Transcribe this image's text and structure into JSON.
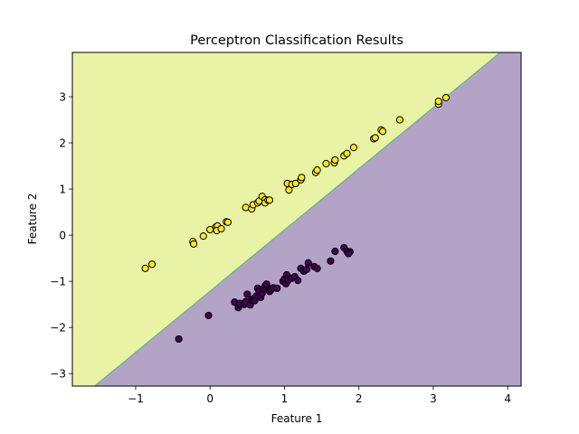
{
  "chart_data": {
    "type": "scatter",
    "title": "Perceptron Classification Results",
    "xlabel": "Feature 1",
    "ylabel": "Feature 2",
    "xlim": [
      -1.85,
      4.18
    ],
    "ylim": [
      -3.27,
      3.96
    ],
    "xticks": [
      -1,
      0,
      1,
      2,
      3,
      4
    ],
    "yticks": [
      -3,
      -2,
      -1,
      0,
      1,
      2,
      3
    ],
    "xtick_labels": [
      "−1",
      "0",
      "1",
      "2",
      "3",
      "4"
    ],
    "ytick_labels": [
      "−3",
      "−2",
      "−1",
      "0",
      "1",
      "2",
      "3"
    ],
    "grid": false,
    "decision_boundary": {
      "points": [
        [
          -1.55,
          -3.27
        ],
        [
          3.9,
          3.96
        ]
      ],
      "region_above_color": "#e9f3a6",
      "region_below_color": "#b3a3c7",
      "boundary_color": "#69b66d"
    },
    "series": [
      {
        "class": 1,
        "color": "#fde725",
        "edgecolor": "#000000",
        "points": [
          [
            -0.87,
            -0.72
          ],
          [
            -0.78,
            -0.63
          ],
          [
            -0.23,
            -0.14
          ],
          [
            -0.22,
            -0.19
          ],
          [
            -0.09,
            -0.02
          ],
          [
            0.0,
            0.12
          ],
          [
            0.08,
            0.18
          ],
          [
            0.1,
            0.2
          ],
          [
            0.09,
            0.1
          ],
          [
            0.15,
            0.14
          ],
          [
            0.22,
            0.29
          ],
          [
            0.24,
            0.28
          ],
          [
            0.48,
            0.6
          ],
          [
            0.56,
            0.57
          ],
          [
            0.58,
            0.66
          ],
          [
            0.64,
            0.7
          ],
          [
            0.66,
            0.74
          ],
          [
            0.7,
            0.84
          ],
          [
            0.74,
            0.77
          ],
          [
            0.74,
            0.7
          ],
          [
            0.78,
            0.76
          ],
          [
            0.8,
            0.76
          ],
          [
            1.04,
            1.12
          ],
          [
            1.06,
            0.98
          ],
          [
            1.1,
            1.1
          ],
          [
            1.15,
            1.12
          ],
          [
            1.22,
            1.2
          ],
          [
            1.23,
            1.25
          ],
          [
            1.42,
            1.36
          ],
          [
            1.44,
            1.41
          ],
          [
            1.56,
            1.55
          ],
          [
            1.67,
            1.57
          ],
          [
            1.68,
            1.63
          ],
          [
            1.8,
            1.72
          ],
          [
            1.84,
            1.77
          ],
          [
            1.93,
            1.9
          ],
          [
            2.2,
            2.09
          ],
          [
            2.22,
            2.11
          ],
          [
            2.3,
            2.28
          ],
          [
            2.32,
            2.25
          ],
          [
            2.55,
            2.5
          ],
          [
            3.07,
            2.84
          ],
          [
            3.07,
            2.9
          ],
          [
            3.17,
            2.98
          ]
        ]
      },
      {
        "class": 0,
        "color": "#440154",
        "edgecolor": "#000000",
        "points": [
          [
            -0.42,
            -2.25
          ],
          [
            -0.02,
            -1.74
          ],
          [
            0.33,
            -1.45
          ],
          [
            0.38,
            -1.57
          ],
          [
            0.4,
            -1.48
          ],
          [
            0.46,
            -1.5
          ],
          [
            0.48,
            -1.44
          ],
          [
            0.5,
            -1.28
          ],
          [
            0.54,
            -1.51
          ],
          [
            0.56,
            -1.4
          ],
          [
            0.58,
            -1.38
          ],
          [
            0.6,
            -1.42
          ],
          [
            0.62,
            -1.32
          ],
          [
            0.64,
            -1.15
          ],
          [
            0.66,
            -1.22
          ],
          [
            0.68,
            -1.35
          ],
          [
            0.7,
            -1.26
          ],
          [
            0.72,
            -1.16
          ],
          [
            0.74,
            -1.1
          ],
          [
            0.76,
            -1.06
          ],
          [
            0.8,
            -1.22
          ],
          [
            0.82,
            -1.18
          ],
          [
            0.85,
            -1.14
          ],
          [
            0.9,
            -1.15
          ],
          [
            0.98,
            -1.0
          ],
          [
            1.0,
            -0.95
          ],
          [
            1.02,
            -1.05
          ],
          [
            1.03,
            -0.86
          ],
          [
            1.05,
            -0.98
          ],
          [
            1.1,
            -0.93
          ],
          [
            1.14,
            -0.9
          ],
          [
            1.18,
            -0.98
          ],
          [
            1.22,
            -0.72
          ],
          [
            1.26,
            -0.78
          ],
          [
            1.3,
            -0.74
          ],
          [
            1.32,
            -0.6
          ],
          [
            1.4,
            -0.68
          ],
          [
            1.44,
            -0.72
          ],
          [
            1.62,
            -0.56
          ],
          [
            1.68,
            -0.35
          ],
          [
            1.8,
            -0.27
          ],
          [
            1.84,
            -0.35
          ],
          [
            1.88,
            -0.36
          ],
          [
            1.86,
            -0.4
          ]
        ]
      }
    ]
  }
}
